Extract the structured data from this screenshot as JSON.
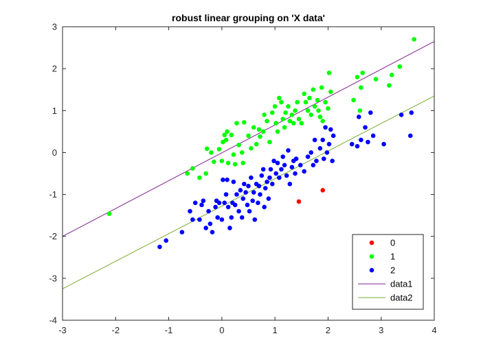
{
  "chart_data": {
    "type": "scatter",
    "title": "robust linear grouping on 'X data'",
    "xlabel": "",
    "ylabel": "",
    "xlim": [
      -3,
      4
    ],
    "ylim": [
      -4,
      3
    ],
    "xticks": [
      -3,
      -2,
      -1,
      0,
      1,
      2,
      3,
      4
    ],
    "yticks": [
      -4,
      -3,
      -2,
      -1,
      0,
      1,
      2,
      3
    ],
    "grid": false,
    "legend_position": "bottom-right",
    "series": [
      {
        "name": "0",
        "kind": "scatter",
        "color": "#ff0000",
        "points": [
          [
            1.45,
            -1.17
          ],
          [
            1.9,
            -0.9
          ]
        ]
      },
      {
        "name": "1",
        "kind": "scatter",
        "color": "#00ff00",
        "points": [
          [
            -2.12,
            -1.46
          ],
          [
            -0.65,
            -0.5
          ],
          [
            -0.55,
            -0.38
          ],
          [
            -0.42,
            -0.6
          ],
          [
            -0.3,
            -0.5
          ],
          [
            -0.28,
            0.09
          ],
          [
            -0.2,
            0.0
          ],
          [
            -0.15,
            -0.22
          ],
          [
            -0.05,
            0.08
          ],
          [
            0.0,
            -0.2
          ],
          [
            0.02,
            0.25
          ],
          [
            0.05,
            0.42
          ],
          [
            0.08,
            0.3
          ],
          [
            0.1,
            0.5
          ],
          [
            0.12,
            -0.25
          ],
          [
            0.18,
            0.42
          ],
          [
            0.22,
            -0.05
          ],
          [
            0.25,
            -0.28
          ],
          [
            0.28,
            0.7
          ],
          [
            0.32,
            0.18
          ],
          [
            0.38,
            0.0
          ],
          [
            0.4,
            -0.25
          ],
          [
            0.42,
            0.72
          ],
          [
            0.5,
            0.4
          ],
          [
            0.55,
            0.1
          ],
          [
            0.6,
            0.6
          ],
          [
            0.65,
            0.2
          ],
          [
            0.7,
            0.55
          ],
          [
            0.72,
            0.38
          ],
          [
            0.78,
            0.5
          ],
          [
            0.8,
            0.9
          ],
          [
            0.85,
            0.75
          ],
          [
            0.9,
            0.25
          ],
          [
            0.95,
            0.95
          ],
          [
            1.0,
            1.1
          ],
          [
            1.02,
            0.7
          ],
          [
            1.05,
            0.5
          ],
          [
            1.08,
            1.3
          ],
          [
            1.12,
            1.2
          ],
          [
            1.15,
            0.8
          ],
          [
            1.18,
            0.6
          ],
          [
            1.2,
            0.95
          ],
          [
            1.25,
            1.1
          ],
          [
            1.28,
            0.75
          ],
          [
            1.32,
            0.9
          ],
          [
            1.35,
            0.7
          ],
          [
            1.38,
            1.0
          ],
          [
            1.42,
            1.2
          ],
          [
            1.45,
            0.8
          ],
          [
            1.5,
            0.7
          ],
          [
            1.55,
            1.4
          ],
          [
            1.58,
            1.2
          ],
          [
            1.62,
            1.0
          ],
          [
            1.65,
            1.3
          ],
          [
            1.68,
            0.9
          ],
          [
            1.72,
            1.5
          ],
          [
            1.75,
            1.1
          ],
          [
            1.8,
            1.25
          ],
          [
            1.82,
            1.0
          ],
          [
            1.85,
            0.85
          ],
          [
            1.88,
            1.55
          ],
          [
            1.9,
            0.75
          ],
          [
            1.95,
            1.2
          ],
          [
            2.0,
            1.05
          ],
          [
            2.02,
            1.9
          ],
          [
            2.05,
            1.45
          ],
          [
            2.48,
            1.25
          ],
          [
            2.55,
            1.8
          ],
          [
            2.6,
            1.0
          ],
          [
            2.62,
            1.55
          ],
          [
            2.65,
            1.9
          ],
          [
            2.9,
            1.75
          ],
          [
            3.15,
            1.6
          ],
          [
            3.2,
            1.85
          ],
          [
            3.35,
            2.05
          ],
          [
            3.62,
            2.7
          ]
        ]
      },
      {
        "name": "2",
        "kind": "scatter",
        "color": "#0000ff",
        "points": [
          [
            -1.17,
            -2.25
          ],
          [
            -1.05,
            -2.1
          ],
          [
            -0.75,
            -1.9
          ],
          [
            -0.6,
            -1.4
          ],
          [
            -0.55,
            -1.6
          ],
          [
            -0.5,
            -1.2
          ],
          [
            -0.42,
            -1.6
          ],
          [
            -0.38,
            -1.25
          ],
          [
            -0.35,
            -1.15
          ],
          [
            -0.3,
            -1.8
          ],
          [
            -0.25,
            -1.4
          ],
          [
            -0.22,
            -1.7
          ],
          [
            -0.18,
            -1.9
          ],
          [
            -0.12,
            -1.3
          ],
          [
            -0.1,
            -1.15
          ],
          [
            -0.08,
            -1.55
          ],
          [
            -0.05,
            -1.2
          ],
          [
            0.0,
            -1.6
          ],
          [
            0.02,
            -0.65
          ],
          [
            0.05,
            -1.2
          ],
          [
            0.08,
            -1.0
          ],
          [
            0.1,
            -0.65
          ],
          [
            0.12,
            -1.3
          ],
          [
            0.15,
            -1.8
          ],
          [
            0.18,
            -1.55
          ],
          [
            0.2,
            -1.2
          ],
          [
            0.22,
            -0.7
          ],
          [
            0.25,
            -1.25
          ],
          [
            0.28,
            -1.0
          ],
          [
            0.32,
            -1.4
          ],
          [
            0.35,
            -0.9
          ],
          [
            0.38,
            -1.55
          ],
          [
            0.4,
            -1.1
          ],
          [
            0.42,
            -0.75
          ],
          [
            0.45,
            -0.95
          ],
          [
            0.48,
            -1.25
          ],
          [
            0.5,
            -0.8
          ],
          [
            0.52,
            -1.4
          ],
          [
            0.55,
            -0.6
          ],
          [
            0.58,
            -1.15
          ],
          [
            0.6,
            -0.95
          ],
          [
            0.62,
            -1.6
          ],
          [
            0.65,
            -0.75
          ],
          [
            0.68,
            -1.2
          ],
          [
            0.7,
            -0.8
          ],
          [
            0.72,
            -1.0
          ],
          [
            0.75,
            -0.55
          ],
          [
            0.78,
            -0.4
          ],
          [
            0.8,
            -1.3
          ],
          [
            0.82,
            -0.85
          ],
          [
            0.85,
            -0.7
          ],
          [
            0.88,
            -1.1
          ],
          [
            0.9,
            -0.6
          ],
          [
            0.92,
            -0.4
          ],
          [
            0.95,
            -0.75
          ],
          [
            0.98,
            -0.2
          ],
          [
            1.02,
            -0.5
          ],
          [
            1.05,
            -0.25
          ],
          [
            1.08,
            -0.6
          ],
          [
            1.12,
            -0.4
          ],
          [
            1.15,
            -0.1
          ],
          [
            1.18,
            -0.3
          ],
          [
            1.22,
            -0.55
          ],
          [
            1.25,
            0.05
          ],
          [
            1.28,
            -0.75
          ],
          [
            1.32,
            -0.35
          ],
          [
            1.35,
            -0.2
          ],
          [
            1.38,
            -0.5
          ],
          [
            1.4,
            -0.15
          ],
          [
            1.48,
            -0.3
          ],
          [
            1.55,
            -0.45
          ],
          [
            1.62,
            -0.1
          ],
          [
            1.68,
            0.0
          ],
          [
            1.72,
            -0.3
          ],
          [
            1.75,
            0.3
          ],
          [
            1.78,
            -0.2
          ],
          [
            1.85,
            0.1
          ],
          [
            1.9,
            0.3
          ],
          [
            1.92,
            -0.15
          ],
          [
            1.95,
            0.6
          ],
          [
            1.98,
            0.0
          ],
          [
            2.02,
            0.2
          ],
          [
            2.05,
            0.55
          ],
          [
            2.08,
            -0.2
          ],
          [
            2.1,
            0.4
          ],
          [
            2.45,
            0.2
          ],
          [
            2.55,
            0.15
          ],
          [
            2.58,
            0.85
          ],
          [
            2.62,
            0.3
          ],
          [
            2.7,
            0.6
          ],
          [
            2.75,
            0.25
          ],
          [
            2.8,
            0.95
          ],
          [
            2.85,
            0.4
          ],
          [
            3.05,
            0.2
          ],
          [
            3.38,
            0.9
          ],
          [
            3.55,
            0.4
          ],
          [
            3.57,
            0.95
          ]
        ]
      },
      {
        "name": "data1",
        "kind": "line",
        "color": "#7e1f8e",
        "points": [
          [
            -3,
            -2.0
          ],
          [
            4,
            2.65
          ]
        ]
      },
      {
        "name": "data2",
        "kind": "line",
        "color": "#77ac30",
        "points": [
          [
            -3,
            -3.25
          ],
          [
            4,
            1.35
          ]
        ]
      }
    ]
  }
}
